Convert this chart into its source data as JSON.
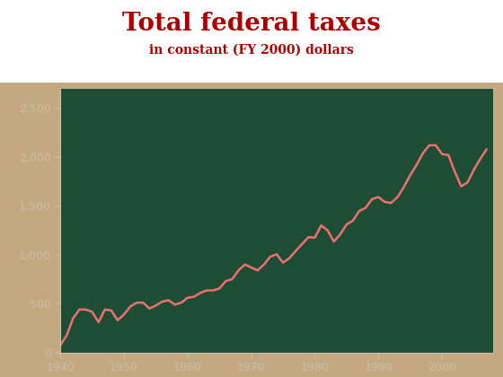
{
  "title": "Total federal taxes",
  "subtitle": "in constant (FY 2000) dollars",
  "title_color": "#AA0000",
  "subtitle_color": "#AA0000",
  "bg_color": "#1E4D35",
  "outer_bg_color": "#C4A882",
  "panel_bg_color": "#C4A882",
  "line_color": "#F07070",
  "axis_color": "#C8C0A8",
  "tick_color": "#C8C0A8",
  "years": [
    1940,
    1941,
    1942,
    1943,
    1944,
    1945,
    1946,
    1947,
    1948,
    1949,
    1950,
    1951,
    1952,
    1953,
    1954,
    1955,
    1956,
    1957,
    1958,
    1959,
    1960,
    1961,
    1962,
    1963,
    1964,
    1965,
    1966,
    1967,
    1968,
    1969,
    1970,
    1971,
    1972,
    1973,
    1974,
    1975,
    1976,
    1977,
    1978,
    1979,
    1980,
    1981,
    1982,
    1983,
    1984,
    1985,
    1986,
    1987,
    1988,
    1989,
    1990,
    1991,
    1992,
    1993,
    1994,
    1995,
    1996,
    1997,
    1998,
    1999,
    2000,
    2001,
    2002,
    2003,
    2004,
    2005,
    2006,
    2007
  ],
  "values": [
    75,
    175,
    350,
    440,
    440,
    415,
    310,
    440,
    430,
    330,
    390,
    470,
    510,
    510,
    450,
    480,
    520,
    535,
    490,
    510,
    560,
    570,
    610,
    635,
    635,
    655,
    730,
    750,
    840,
    900,
    870,
    840,
    900,
    980,
    1005,
    920,
    965,
    1040,
    1110,
    1180,
    1175,
    1300,
    1250,
    1135,
    1210,
    1310,
    1350,
    1450,
    1480,
    1570,
    1590,
    1540,
    1530,
    1590,
    1695,
    1815,
    1920,
    2040,
    2120,
    2120,
    2030,
    2020,
    1850,
    1700,
    1740,
    1870,
    1980,
    2080
  ],
  "xlim": [
    1940,
    2008
  ],
  "ylim": [
    0,
    2700
  ],
  "yticks": [
    0,
    500,
    1000,
    1500,
    2000,
    2500
  ],
  "xticks": [
    1940,
    1950,
    1960,
    1970,
    1980,
    1990,
    2000
  ],
  "line_width": 1.8,
  "title_fontsize": 20,
  "subtitle_fontsize": 10,
  "tick_fontsize": 9
}
